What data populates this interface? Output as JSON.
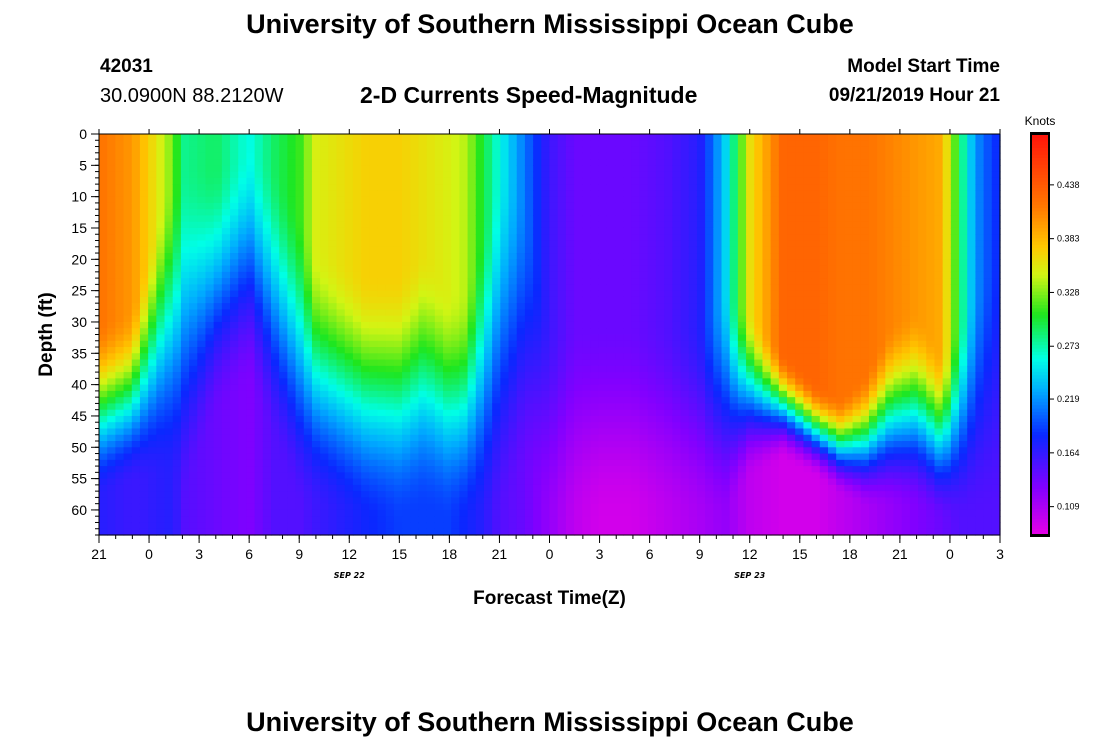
{
  "header": {
    "title": "University of Southern Mississippi Ocean Cube",
    "station_id": "42031",
    "station_coords": "30.0900N 88.2120W",
    "chart_title": "2-D Currents Speed-Magnitude",
    "model_label": "Model Start Time",
    "model_time": "09/21/2019 Hour 21"
  },
  "footer": {
    "title": "University of Southern Mississippi Ocean Cube"
  },
  "chart_data": {
    "type": "heatmap",
    "title": "2-D Currents Speed-Magnitude",
    "xlabel": "Forecast Time(Z)",
    "ylabel": "Depth (ft)",
    "x_unit": "hours since 09/21/2019 21Z",
    "x_range": [
      0,
      54
    ],
    "x_tick_labels": [
      "21",
      "0",
      "3",
      "6",
      "9",
      "12",
      "15",
      "18",
      "21",
      "0",
      "3",
      "6",
      "9",
      "12",
      "15",
      "18",
      "21",
      "0",
      "3"
    ],
    "date_labels": [
      {
        "text": "SEP 22",
        "hour": 15
      },
      {
        "text": "SEP 23",
        "hour": 39
      }
    ],
    "y_range": [
      0,
      64
    ],
    "y_ticks": [
      0,
      5,
      10,
      15,
      20,
      25,
      30,
      35,
      40,
      45,
      50,
      55,
      60
    ],
    "colorbar": {
      "unit": "Knots",
      "range": [
        0.08,
        0.49
      ],
      "tick_values": [
        0.109,
        0.164,
        0.219,
        0.273,
        0.328,
        0.383,
        0.438
      ],
      "tick_labels": [
        "0.109",
        "0.164",
        "0.219",
        "0.273",
        "0.328",
        "0.383",
        "0.438"
      ]
    },
    "profiles": [
      {
        "hour": 0,
        "surface": 0.42,
        "bottom": 0.17,
        "t1": 30,
        "t2": 58
      },
      {
        "hour": 2,
        "surface": 0.4,
        "bottom": 0.16,
        "t1": 28,
        "t2": 56
      },
      {
        "hour": 4,
        "surface": 0.34,
        "bottom": 0.17,
        "t1": 8,
        "t2": 55
      },
      {
        "hour": 4.5,
        "surface": 0.32,
        "bottom": 0.17,
        "t1": 8,
        "t2": 55
      },
      {
        "hour": 5,
        "surface": 0.28,
        "bottom": 0.15,
        "t1": 5,
        "t2": 60
      },
      {
        "hour": 7,
        "surface": 0.29,
        "bottom": 0.14,
        "t1": 5,
        "t2": 45
      },
      {
        "hour": 9,
        "surface": 0.26,
        "bottom": 0.13,
        "t1": 2,
        "t2": 40
      },
      {
        "hour": 10.5,
        "surface": 0.29,
        "bottom": 0.15,
        "t1": 5,
        "t2": 50
      },
      {
        "hour": 12,
        "surface": 0.31,
        "bottom": 0.15,
        "t1": 12,
        "t2": 60
      },
      {
        "hour": 13,
        "surface": 0.35,
        "bottom": 0.16,
        "t1": 18,
        "t2": 60
      },
      {
        "hour": 16,
        "surface": 0.37,
        "bottom": 0.18,
        "t1": 22,
        "t2": 62
      },
      {
        "hour": 18,
        "surface": 0.37,
        "bottom": 0.19,
        "t1": 22,
        "t2": 62
      },
      {
        "hour": 19.5,
        "surface": 0.36,
        "bottom": 0.19,
        "t1": 18,
        "t2": 60
      },
      {
        "hour": 21,
        "surface": 0.35,
        "bottom": 0.19,
        "t1": 25,
        "t2": 62
      },
      {
        "hour": 22,
        "surface": 0.34,
        "bottom": 0.18,
        "t1": 25,
        "t2": 62
      },
      {
        "hour": 23,
        "surface": 0.3,
        "bottom": 0.17,
        "t1": 15,
        "t2": 62
      },
      {
        "hour": 24,
        "surface": 0.26,
        "bottom": 0.15,
        "t1": 5,
        "t2": 62
      },
      {
        "hour": 25.5,
        "surface": 0.21,
        "bottom": 0.14,
        "t1": 10,
        "t2": 55
      },
      {
        "hour": 27,
        "surface": 0.16,
        "bottom": 0.12,
        "t1": 30,
        "t2": 62
      },
      {
        "hour": 28.5,
        "surface": 0.14,
        "bottom": 0.1,
        "t1": 30,
        "t2": 62
      },
      {
        "hour": 30,
        "surface": 0.14,
        "bottom": 0.09,
        "t1": 30,
        "t2": 62
      },
      {
        "hour": 32,
        "surface": 0.14,
        "bottom": 0.09,
        "t1": 30,
        "t2": 62
      },
      {
        "hour": 34,
        "surface": 0.15,
        "bottom": 0.1,
        "t1": 30,
        "t2": 62
      },
      {
        "hour": 36,
        "surface": 0.17,
        "bottom": 0.11,
        "t1": 30,
        "t2": 62
      },
      {
        "hour": 37.5,
        "surface": 0.24,
        "bottom": 0.12,
        "t1": 25,
        "t2": 62
      },
      {
        "hour": 39,
        "surface": 0.36,
        "bottom": 0.1,
        "t1": 28,
        "t2": 55
      },
      {
        "hour": 41,
        "surface": 0.43,
        "bottom": 0.09,
        "t1": 35,
        "t2": 52
      },
      {
        "hour": 43,
        "surface": 0.43,
        "bottom": 0.09,
        "t1": 40,
        "t2": 55
      },
      {
        "hour": 44.5,
        "surface": 0.42,
        "bottom": 0.1,
        "t1": 42,
        "t2": 58
      },
      {
        "hour": 46,
        "surface": 0.42,
        "bottom": 0.11,
        "t1": 38,
        "t2": 60
      },
      {
        "hour": 47.5,
        "surface": 0.41,
        "bottom": 0.12,
        "t1": 30,
        "t2": 60
      },
      {
        "hour": 49,
        "surface": 0.4,
        "bottom": 0.13,
        "t1": 28,
        "t2": 60
      },
      {
        "hour": 50.5,
        "surface": 0.39,
        "bottom": 0.14,
        "t1": 35,
        "t2": 62
      },
      {
        "hour": 51.5,
        "surface": 0.3,
        "bottom": 0.15,
        "t1": 30,
        "t2": 62
      },
      {
        "hour": 52.5,
        "surface": 0.22,
        "bottom": 0.15,
        "t1": 25,
        "t2": 62
      },
      {
        "hour": 53.5,
        "surface": 0.19,
        "bottom": 0.15,
        "t1": 20,
        "t2": 62
      },
      {
        "hour": 54,
        "surface": 0.18,
        "bottom": 0.15,
        "t1": 20,
        "t2": 62
      }
    ]
  }
}
